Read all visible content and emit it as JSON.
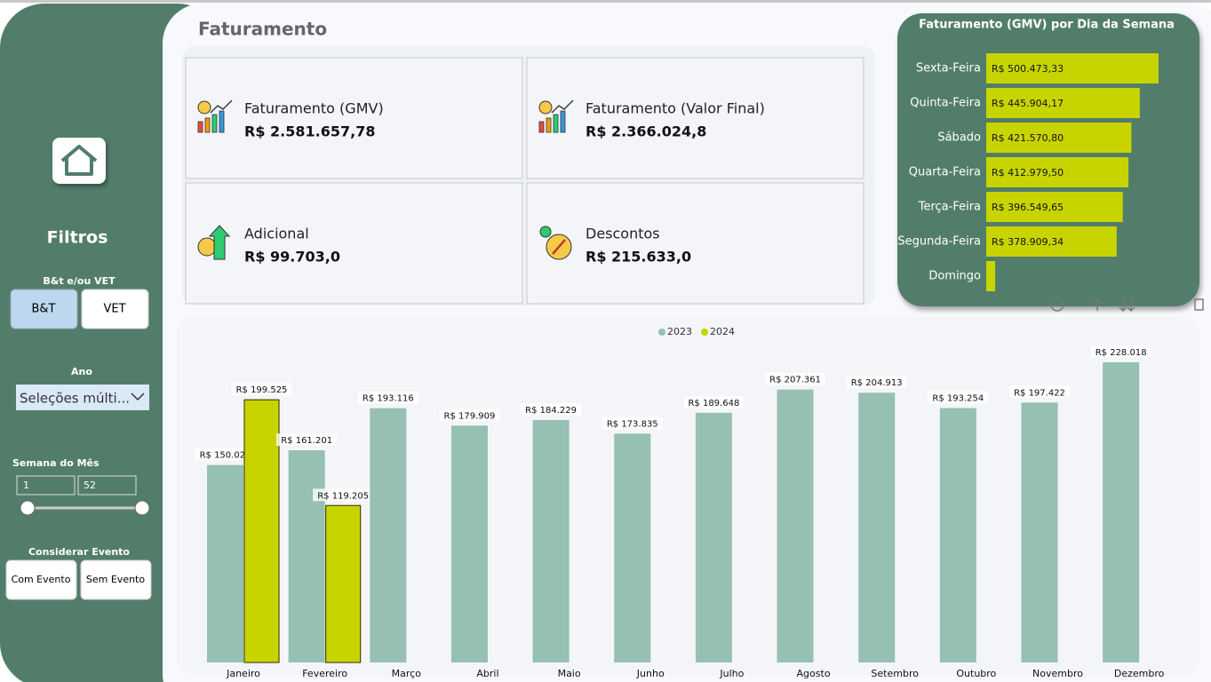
{
  "sidebar": {
    "filters_title": "Filtros",
    "segment_label": "B&t e/ou VET",
    "segment_options": [
      "B&T",
      "VET"
    ],
    "year_label": "Ano",
    "year_value": "Seleções múlti...",
    "week_label": "Semana do Mês",
    "week_range": [
      1,
      52
    ],
    "event_label": "Considerar Evento",
    "event_options": [
      "Com Evento",
      "Sem Evento"
    ]
  },
  "header": {
    "title": "Faturamento"
  },
  "kpis": [
    {
      "label": "Faturamento (GMV)",
      "value": "R$ 2.581.657,78"
    },
    {
      "label": "Faturamento (Valor Final)",
      "value": "R$ 2.366.024,8"
    },
    {
      "label": "Adicional",
      "value": "R$ 99.703,0"
    },
    {
      "label": "Descontos",
      "value": "R$ 215.633,0"
    }
  ],
  "chart_data": [
    {
      "type": "hbar",
      "title": "Faturamento (GMV) por Dia da Semana",
      "categories": [
        "Sexta-Feira",
        "Quinta-Feira",
        "Sábado",
        "Quarta-Feira",
        "Terça-Feira",
        "Segunda-Feira",
        "Domingo"
      ],
      "values": [
        500473.33,
        445904.17,
        421570.8,
        412979.5,
        396549.65,
        378909.34,
        26000
      ],
      "value_labels": [
        "R$ 500.473,33",
        "R$ 445.904,17",
        "R$ 421.570,80",
        "R$ 412.979,50",
        "R$ 396.549,65",
        "R$ 378.909,34",
        null
      ],
      "color": "#c8d400"
    },
    {
      "type": "bar",
      "categories": [
        "Janeiro",
        "Fevereiro",
        "Março",
        "Abril",
        "Maio",
        "Junho",
        "Julho",
        "Agosto",
        "Setembro",
        "Outubro",
        "Novembro",
        "Dezembro"
      ],
      "series": [
        {
          "name": "2023",
          "color": "#95c0b2",
          "values": [
            150022,
            161201,
            193116,
            179909,
            184229,
            173835,
            189648,
            207361,
            204913,
            193254,
            197422,
            228018
          ],
          "value_labels": [
            "R$ 150.022",
            "R$ 161.201",
            "R$ 193.116",
            "R$ 179.909",
            "R$ 184.229",
            "R$ 173.835",
            "R$ 189.648",
            "R$ 207.361",
            "R$ 204.913",
            "R$ 193.254",
            "R$ 197.422",
            "R$ 228.018"
          ]
        },
        {
          "name": "2024",
          "color": "#c8d400",
          "values": [
            199525,
            119205,
            null,
            null,
            null,
            null,
            null,
            null,
            null,
            null,
            null,
            null
          ],
          "value_labels": [
            "R$ 199.525",
            "R$ 119.205",
            null,
            null,
            null,
            null,
            null,
            null,
            null,
            null,
            null,
            null
          ]
        }
      ],
      "legend": "top"
    }
  ]
}
